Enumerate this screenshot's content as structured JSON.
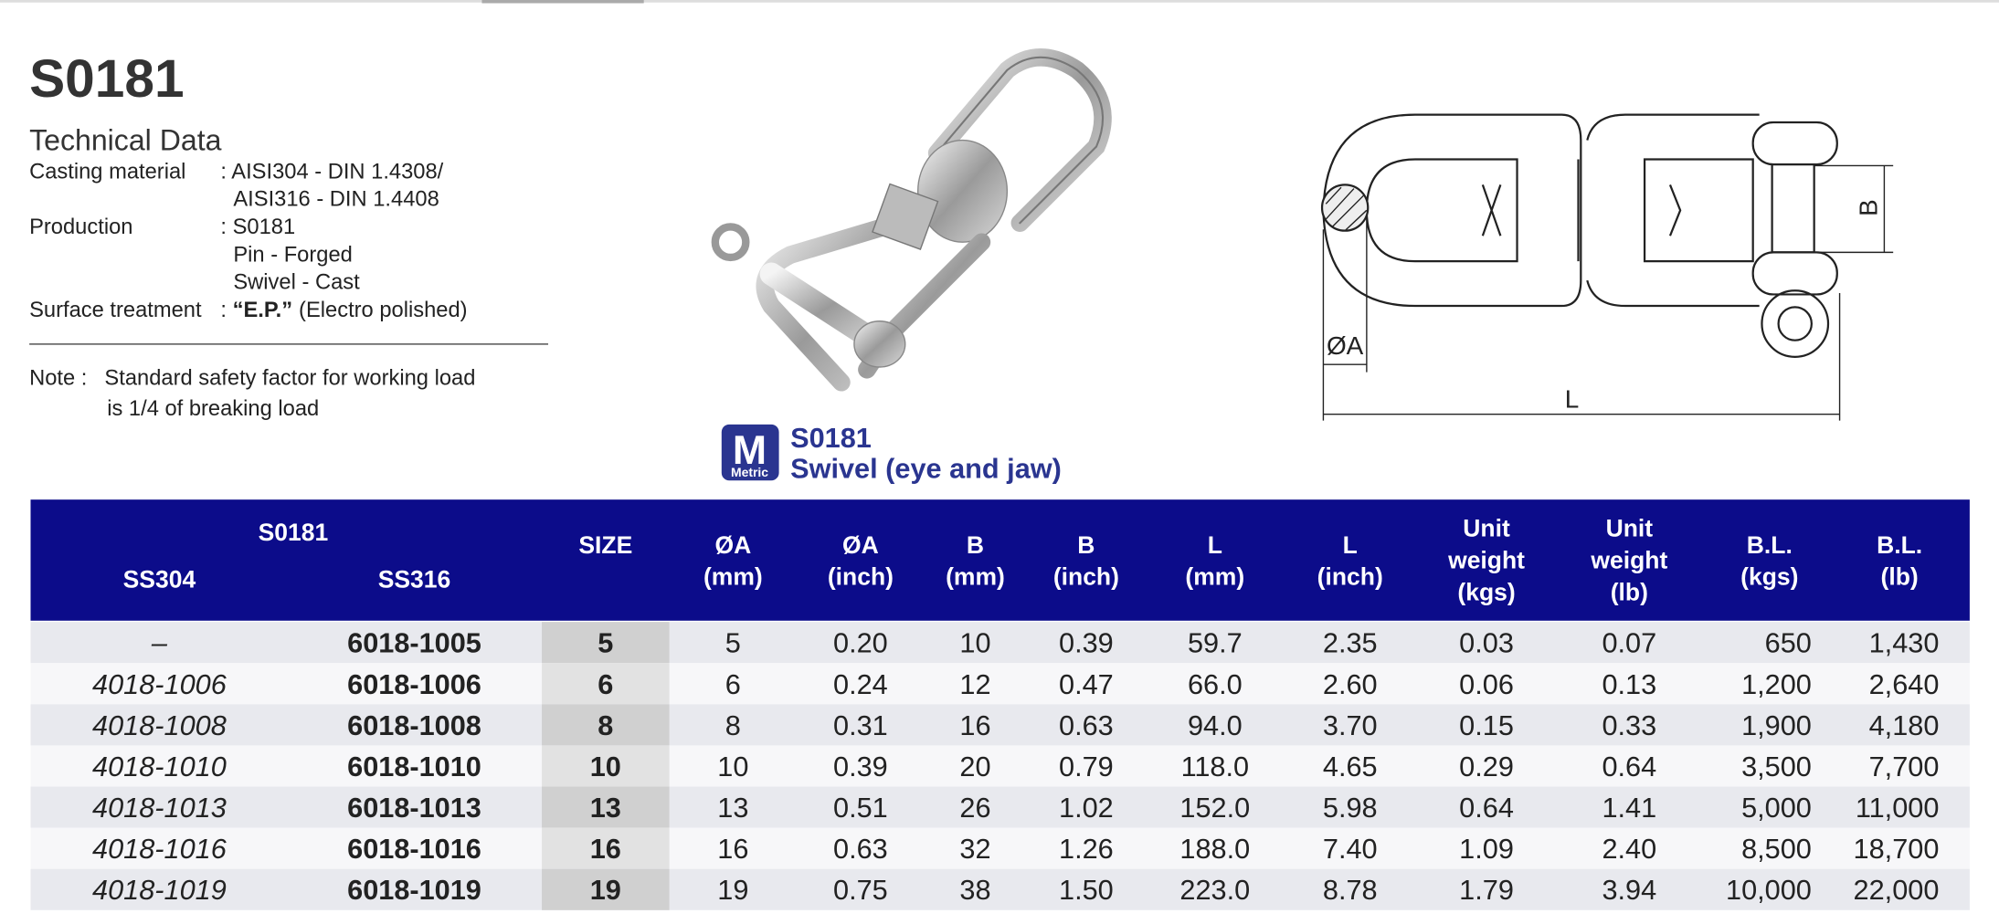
{
  "header": {
    "title": "S0181"
  },
  "technical_data": {
    "heading": "Technical Data",
    "specs": [
      {
        "label": "Casting material",
        "lines": [
          ": AISI304 - DIN 1.4308/",
          "AISI316 - DIN 1.4408"
        ]
      },
      {
        "label": "Production",
        "lines": [
          ": S0181",
          "Pin - Forged",
          "Swivel - Cast"
        ]
      },
      {
        "label": "Surface treatment",
        "prefix": ": ",
        "emphasis": "“E.P.”",
        "rest": "(Electro polished)"
      }
    ]
  },
  "note": {
    "label": "Note :",
    "lines": [
      "Standard safety factor for working load",
      "is 1/4 of breaking load"
    ]
  },
  "badge": {
    "letter": "M",
    "text": "Metric"
  },
  "product": {
    "code": "S0181",
    "name": "Swivel (eye and jaw)"
  },
  "drawing": {
    "labels": {
      "diameter": "ØA",
      "width": "B",
      "length": "L"
    }
  },
  "table": {
    "group_header": "S0181",
    "columns": [
      [
        "SS304"
      ],
      [
        "SS316"
      ],
      [
        "SIZE"
      ],
      [
        "ØA",
        "(mm)"
      ],
      [
        "ØA",
        "(inch)"
      ],
      [
        "B",
        "(mm)"
      ],
      [
        "B",
        "(inch)"
      ],
      [
        "L",
        "(mm)"
      ],
      [
        "L",
        "(inch)"
      ],
      [
        "Unit",
        "weight",
        "(kgs)"
      ],
      [
        "Unit",
        "weight",
        "(lb)"
      ],
      [
        "B.L.",
        "(kgs)"
      ],
      [
        "B.L.",
        "(lb)"
      ]
    ],
    "rows": [
      [
        "–",
        "6018-1005",
        "5",
        "5",
        "0.20",
        "10",
        "0.39",
        "59.7",
        "2.35",
        "0.03",
        "0.07",
        "650",
        "1,430"
      ],
      [
        "4018-1006",
        "6018-1006",
        "6",
        "6",
        "0.24",
        "12",
        "0.47",
        "66.0",
        "2.60",
        "0.06",
        "0.13",
        "1,200",
        "2,640"
      ],
      [
        "4018-1008",
        "6018-1008",
        "8",
        "8",
        "0.31",
        "16",
        "0.63",
        "94.0",
        "3.70",
        "0.15",
        "0.33",
        "1,900",
        "4,180"
      ],
      [
        "4018-1010",
        "6018-1010",
        "10",
        "10",
        "0.39",
        "20",
        "0.79",
        "118.0",
        "4.65",
        "0.29",
        "0.64",
        "3,500",
        "7,700"
      ],
      [
        "4018-1013",
        "6018-1013",
        "13",
        "13",
        "0.51",
        "26",
        "1.02",
        "152.0",
        "5.98",
        "0.64",
        "1.41",
        "5,000",
        "11,000"
      ],
      [
        "4018-1016",
        "6018-1016",
        "16",
        "16",
        "0.63",
        "32",
        "1.26",
        "188.0",
        "7.40",
        "1.09",
        "2.40",
        "8,500",
        "18,700"
      ],
      [
        "4018-1019",
        "6018-1019",
        "19",
        "19",
        "0.75",
        "38",
        "1.50",
        "223.0",
        "8.78",
        "1.79",
        "3.94",
        "10,000",
        "22,000"
      ]
    ]
  }
}
